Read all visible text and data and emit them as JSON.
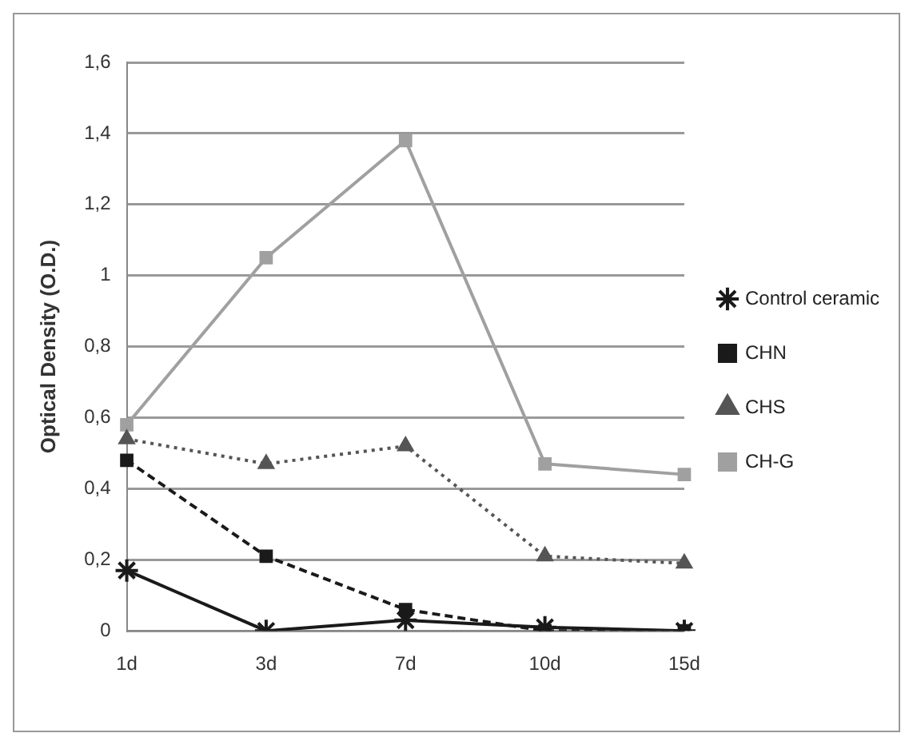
{
  "chart_data": {
    "type": "line",
    "ylabel": "Optical Density (O.D.)",
    "categories": [
      "1d",
      "3d",
      "7d",
      "10d",
      "15d"
    ],
    "series": [
      {
        "name": "Control ceramic",
        "color": "#1a1a1a",
        "values": [
          0.17,
          0,
          0.03,
          0.01,
          0
        ],
        "marker": "cross",
        "line_style": "solid"
      },
      {
        "name": "CHN",
        "color": "#1a1a1a",
        "values": [
          0.48,
          0.21,
          0.06,
          0,
          0
        ],
        "marker": "square",
        "line_style": "dashed"
      },
      {
        "name": "CHS",
        "color": "#555555",
        "values": [
          0.54,
          0.47,
          0.52,
          0.21,
          0.19
        ],
        "marker": "triangle",
        "line_style": "dotted"
      },
      {
        "name": "CH-G",
        "color": "#a0a0a0",
        "values": [
          0.58,
          1.05,
          1.38,
          0.47,
          0.44
        ],
        "marker": "square",
        "line_style": "solid"
      }
    ],
    "ylim": [
      0,
      1.6
    ],
    "yticks": [
      0,
      {
        "value": 0.2,
        "label": "0,2"
      },
      {
        "value": 0.4,
        "label": "0,4"
      },
      {
        "value": 0.6,
        "label": "0,6"
      },
      {
        "value": 0.8,
        "label": "0,8"
      },
      1,
      {
        "value": 1.2,
        "label": "1,2"
      },
      {
        "value": 1.4,
        "label": "1,4"
      },
      {
        "value": 1.6,
        "label": "1,6"
      }
    ],
    "grid": "y",
    "legend": "right"
  }
}
